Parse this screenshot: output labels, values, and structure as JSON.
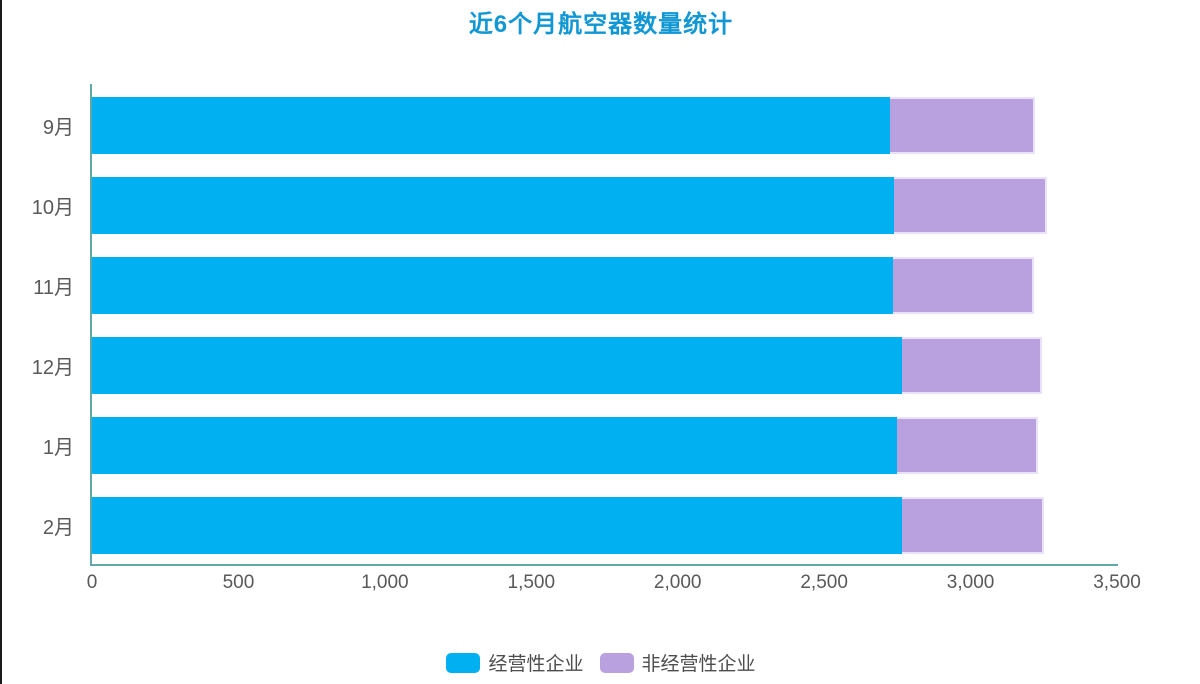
{
  "title": "近6个月航空器数量统计",
  "colors": {
    "title": "#1197d3",
    "axis_line": "#63a8a8",
    "tick_label": "#595959",
    "series1": "#00b0f0",
    "series2": "#b8a1de",
    "series2_border": "#e8e1f7"
  },
  "chart_data": {
    "type": "bar",
    "orientation": "horizontal",
    "stacked": true,
    "title": "近6个月航空器数量统计",
    "categories": [
      "9月",
      "10月",
      "11月",
      "12月",
      "1月",
      "2月"
    ],
    "series": [
      {
        "name": "经营性企业",
        "color": "#00b0f0",
        "values": [
          2725,
          2740,
          2735,
          2765,
          2750,
          2765
        ]
      },
      {
        "name": "非经营性企业",
        "color": "#b8a1de",
        "values": [
          495,
          520,
          480,
          480,
          480,
          485
        ]
      }
    ],
    "xlim": [
      0,
      3500
    ],
    "xticks": [
      "0",
      "500",
      "1,000",
      "1,500",
      "2,000",
      "2,500",
      "3,000",
      "3,500"
    ],
    "grid": false,
    "legend_position": "bottom"
  }
}
